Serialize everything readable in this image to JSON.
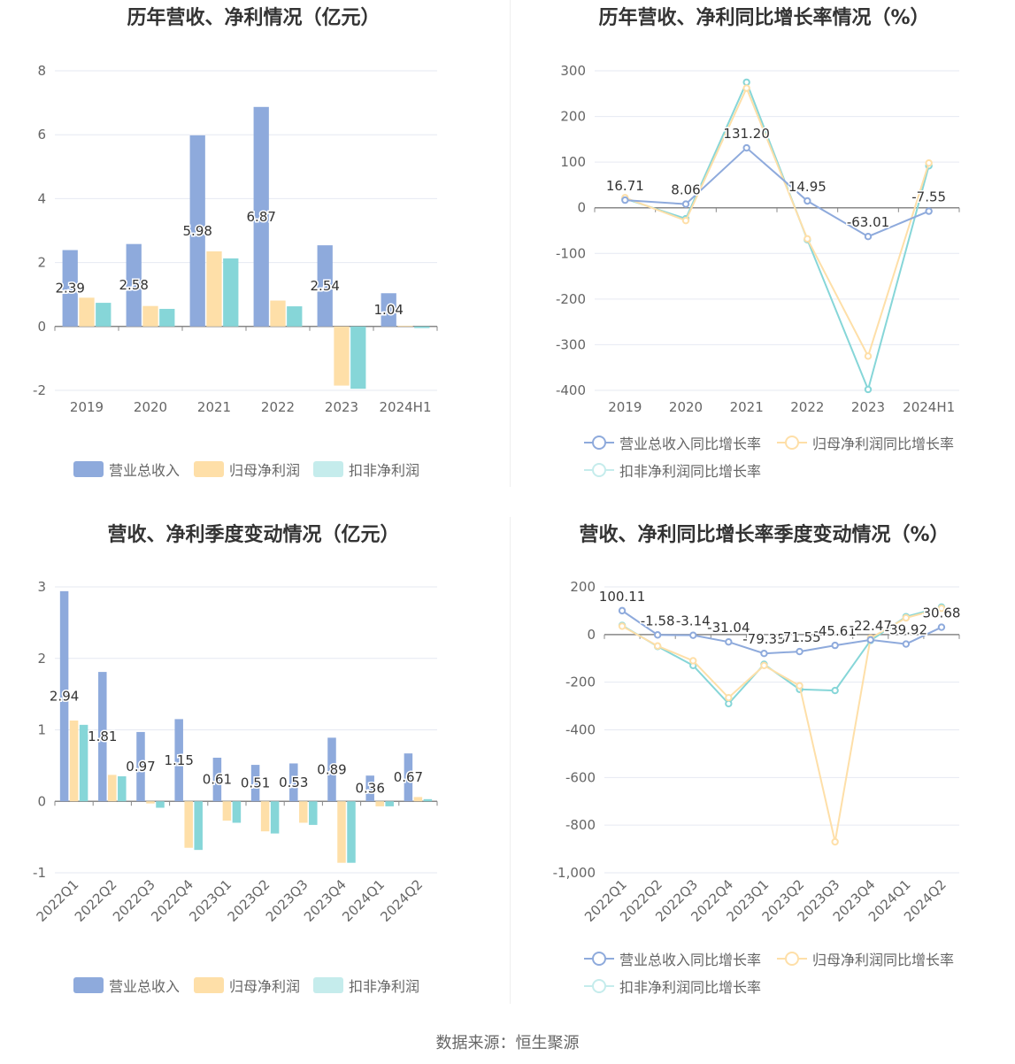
{
  "source_text": "数据来源：恒生聚源",
  "colors": {
    "revenue": "#8eaadc",
    "parent": "#fedfa8",
    "nonrec": "#86d6d8",
    "axis": "#888888",
    "grid": "#e6e9f2",
    "text": "#666666"
  },
  "legend_labels": {
    "revenue": "营业总收入",
    "parent": "归母净利润",
    "nonrec": "扣非净利润",
    "revenue_growth": "营业总收入同比增长率",
    "parent_growth": "归母净利润同比增长率",
    "nonrec_growth": "扣非净利润同比增长率"
  },
  "chart_data": [
    {
      "type": "bar",
      "title": "历年营收、净利情况（亿元）",
      "categories": [
        "2019",
        "2020",
        "2021",
        "2022",
        "2023",
        "2024H1"
      ],
      "ylim": [
        -2,
        8
      ],
      "yticks": [
        -2,
        0,
        2,
        4,
        6,
        8
      ],
      "series": [
        {
          "name": "营业总收入",
          "values": [
            2.39,
            2.58,
            5.98,
            6.87,
            2.54,
            1.04
          ],
          "labeled": true
        },
        {
          "name": "归母净利润",
          "values": [
            0.9,
            0.64,
            2.35,
            0.81,
            -1.85,
            0.02
          ]
        },
        {
          "name": "扣非净利润",
          "values": [
            0.74,
            0.55,
            2.13,
            0.63,
            -1.95,
            -0.05
          ]
        }
      ],
      "data_labels": [
        "2.39",
        "2.58",
        "5.98",
        "6.87",
        "2.54",
        "1.04"
      ],
      "legend_position": "bottom",
      "grid": true
    },
    {
      "type": "line",
      "title": "历年营收、净利同比增长率情况（%）",
      "categories": [
        "2019",
        "2020",
        "2021",
        "2022",
        "2023",
        "2024H1"
      ],
      "ylim": [
        -400,
        300
      ],
      "yticks": [
        -400,
        -300,
        -200,
        -100,
        0,
        100,
        200,
        300
      ],
      "series": [
        {
          "name": "营业总收入同比增长率",
          "values": [
            16.71,
            8.06,
            131.2,
            14.95,
            -63.01,
            -7.55
          ],
          "labeled": true
        },
        {
          "name": "归母净利润同比增长率",
          "values": [
            22,
            -28,
            262,
            -68,
            -325,
            98
          ]
        },
        {
          "name": "扣非净利润同比增长率",
          "values": [
            20,
            -24,
            275,
            -70,
            -398,
            92
          ]
        }
      ],
      "data_labels": [
        "16.71",
        "8.06",
        "131.20",
        "14.95",
        "-63.01",
        "-7.55"
      ],
      "legend_position": "bottom",
      "grid": true
    },
    {
      "type": "bar",
      "title": "营收、净利季度变动情况（亿元）",
      "categories": [
        "2022Q1",
        "2022Q2",
        "2022Q3",
        "2022Q4",
        "2023Q1",
        "2023Q2",
        "2023Q3",
        "2023Q4",
        "2024Q1",
        "2024Q2"
      ],
      "ylim": [
        -1,
        3
      ],
      "yticks": [
        -1,
        0,
        1,
        2,
        3
      ],
      "series": [
        {
          "name": "营业总收入",
          "values": [
            2.94,
            1.81,
            0.97,
            1.15,
            0.61,
            0.51,
            0.53,
            0.89,
            0.36,
            0.67
          ],
          "labeled": true
        },
        {
          "name": "归母净利润",
          "values": [
            1.13,
            0.37,
            -0.03,
            -0.65,
            -0.27,
            -0.42,
            -0.3,
            -0.86,
            -0.07,
            0.06
          ]
        },
        {
          "name": "扣非净利润",
          "values": [
            1.07,
            0.35,
            -0.09,
            -0.68,
            -0.3,
            -0.45,
            -0.33,
            -0.86,
            -0.07,
            0.03
          ]
        }
      ],
      "data_labels": [
        "2.94",
        "1.81",
        "0.97",
        "1.15",
        "0.61",
        "0.51",
        "0.53",
        "0.89",
        "0.36",
        "0.67"
      ],
      "legend_position": "bottom",
      "grid": true
    },
    {
      "type": "line",
      "title": "营收、净利同比增长率季度变动情况（%）",
      "categories": [
        "2022Q1",
        "2022Q2",
        "2022Q3",
        "2022Q4",
        "2023Q1",
        "2023Q2",
        "2023Q3",
        "2023Q4",
        "2024Q1",
        "2024Q2"
      ],
      "ylim": [
        -1000,
        200
      ],
      "yticks": [
        -1000,
        -800,
        -600,
        -400,
        -200,
        0,
        200
      ],
      "ytick_labels": [
        "-1,000",
        "-800",
        "-600",
        "-400",
        "-200",
        "0",
        "200"
      ],
      "series": [
        {
          "name": "营业总收入同比增长率",
          "values": [
            100.11,
            -1.58,
            -3.14,
            -31.04,
            -79.35,
            -71.55,
            -45.61,
            -22.47,
            -39.92,
            30.68
          ],
          "labeled": true
        },
        {
          "name": "归母净利润同比增长率",
          "values": [
            35,
            -48,
            -110,
            -265,
            -130,
            -215,
            -870,
            -15,
            70,
            110
          ]
        },
        {
          "name": "扣非净利润同比增长率",
          "values": [
            38,
            -50,
            -130,
            -290,
            -125,
            -230,
            -235,
            -25,
            75,
            115
          ]
        }
      ],
      "data_labels": [
        "100.11",
        "-1.58",
        "-3.14",
        "-31.04",
        "-79.35",
        "-71.55",
        "-45.61",
        "-22.47",
        "-39.92",
        "30.68"
      ],
      "legend_position": "bottom",
      "grid": true
    }
  ]
}
